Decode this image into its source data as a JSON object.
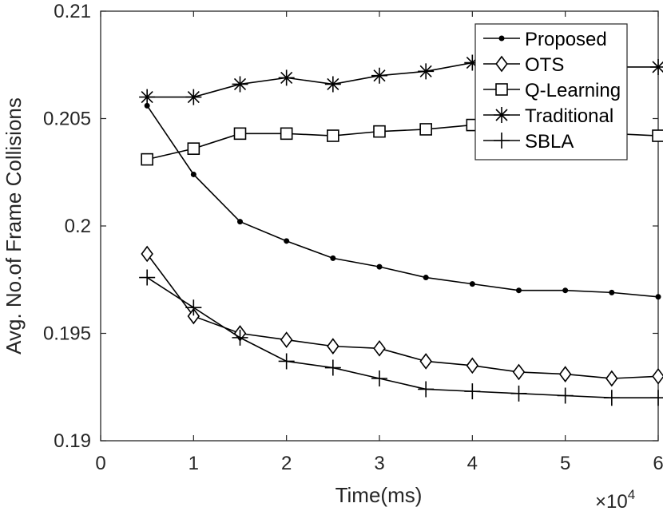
{
  "chart_data": {
    "type": "line",
    "xlabel": "Time(ms)",
    "ylabel": "Avg. No.of Frame Collisions",
    "x_multiplier_label": "×10",
    "x_multiplier_exponent": "4",
    "xlim": [
      0,
      6
    ],
    "ylim": [
      0.19,
      0.21
    ],
    "x_ticks": [
      0,
      1,
      2,
      3,
      4,
      5,
      6
    ],
    "x_tick_labels": [
      "0",
      "1",
      "2",
      "3",
      "4",
      "5",
      "6"
    ],
    "y_ticks": [
      0.19,
      0.195,
      0.2,
      0.205,
      0.21
    ],
    "y_tick_labels": [
      "0.19",
      "0.195",
      "0.2",
      "0.205",
      "0.21"
    ],
    "grid": false,
    "legend_position": "top-right",
    "x": [
      0.5,
      1,
      1.5,
      2,
      2.5,
      3,
      3.5,
      4,
      4.5,
      5,
      5.5,
      6
    ],
    "series": [
      {
        "name": "Proposed",
        "marker": "dot",
        "color": "#000000",
        "values": [
          0.2056,
          0.2024,
          0.2002,
          0.1993,
          0.1985,
          0.1981,
          0.1976,
          0.1973,
          0.197,
          0.197,
          0.1969,
          0.1967
        ]
      },
      {
        "name": "OTS",
        "marker": "diamond",
        "color": "#000000",
        "values": [
          0.1987,
          0.1958,
          0.195,
          0.1947,
          0.1944,
          0.1943,
          0.1937,
          0.1935,
          0.1932,
          0.1931,
          0.1929,
          0.193
        ]
      },
      {
        "name": "Q-Learning",
        "marker": "square",
        "color": "#000000",
        "values": [
          0.2031,
          0.2036,
          0.2043,
          0.2043,
          0.2042,
          0.2044,
          0.2045,
          0.2047,
          0.2044,
          0.2043,
          0.2043,
          0.2042
        ]
      },
      {
        "name": "Traditional",
        "marker": "asterisk",
        "color": "#000000",
        "values": [
          0.206,
          0.206,
          0.2066,
          0.2069,
          0.2066,
          0.207,
          0.2072,
          0.2076,
          0.2074,
          0.2075,
          0.2074,
          0.2074
        ]
      },
      {
        "name": "SBLA",
        "marker": "plus",
        "color": "#000000",
        "values": [
          0.1976,
          0.1962,
          0.1948,
          0.1937,
          0.1934,
          0.1929,
          0.1924,
          0.1923,
          0.1922,
          0.1921,
          0.192,
          0.192
        ]
      }
    ]
  }
}
